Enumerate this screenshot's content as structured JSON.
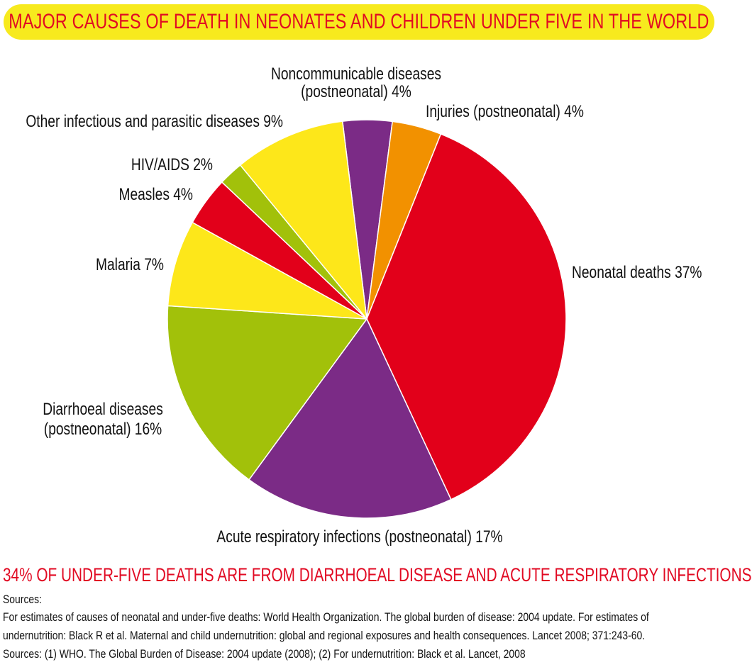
{
  "chart_data": {
    "type": "pie",
    "title": "MAJOR CAUSES OF DEATH IN NEONATES AND CHILDREN UNDER FIVE IN THE WORLD",
    "slices": [
      {
        "name": "Noncommunicable diseases (postneonatal)",
        "value": 4,
        "color": "#7b2b86",
        "label_lines": [
          "Noncommunicable diseases",
          "(postneonatal) 4%"
        ]
      },
      {
        "name": "Injuries (postneonatal)",
        "value": 4,
        "color": "#f29100",
        "label_lines": [
          "Injuries (postneonatal) 4%"
        ]
      },
      {
        "name": "Neonatal deaths",
        "value": 37,
        "color": "#e2001a",
        "label_lines": [
          "Neonatal deaths 37%"
        ]
      },
      {
        "name": "Acute respiratory infections (postneonatal)",
        "value": 17,
        "color": "#7b2b86",
        "label_lines": [
          "Acute respiratory infections (postneonatal) 17%"
        ]
      },
      {
        "name": "Diarrhoeal diseases (postneonatal)",
        "value": 16,
        "color": "#a2c10a",
        "label_lines": [
          "Diarrhoeal diseases",
          "(postneonatal) 16%"
        ]
      },
      {
        "name": "Malaria",
        "value": 7,
        "color": "#fde71a",
        "label_lines": [
          "Malaria 7%"
        ]
      },
      {
        "name": "Measles",
        "value": 4,
        "color": "#e2001a",
        "label_lines": [
          "Measles 4%"
        ]
      },
      {
        "name": "HIV/AIDS",
        "value": 2,
        "color": "#a2c10a",
        "label_lines": [
          "HIV/AIDS 2%"
        ]
      },
      {
        "name": "Other infectious and parasitic diseases",
        "value": 9,
        "color": "#fde71a",
        "label_lines": [
          "Other infectious and parasitic diseases 9%"
        ]
      }
    ]
  },
  "colors": {
    "banner": "#f7ea1e",
    "accent_red": "#e10a23"
  },
  "footer": {
    "headline": "34% OF UNDER-FIVE DEATHS ARE FROM DIARRHOEAL DISEASE AND ACUTE RESPIRATORY INFECTIONS",
    "sources_label": "Sources:",
    "line1": "For estimates of causes of neonatal and under-five deaths: World Health Organization. The global burden of disease: 2004 update. For estimates of",
    "line2": "undernutrition: Black R et al. Maternal and child undernutrition: global and regional exposures and health consequences. Lancet 2008; 371:243-60.",
    "line3": "Sources: (1) WHO. The Global Burden of Disease: 2004 update (2008); (2) For undernutrition: Black et al. Lancet, 2008"
  }
}
